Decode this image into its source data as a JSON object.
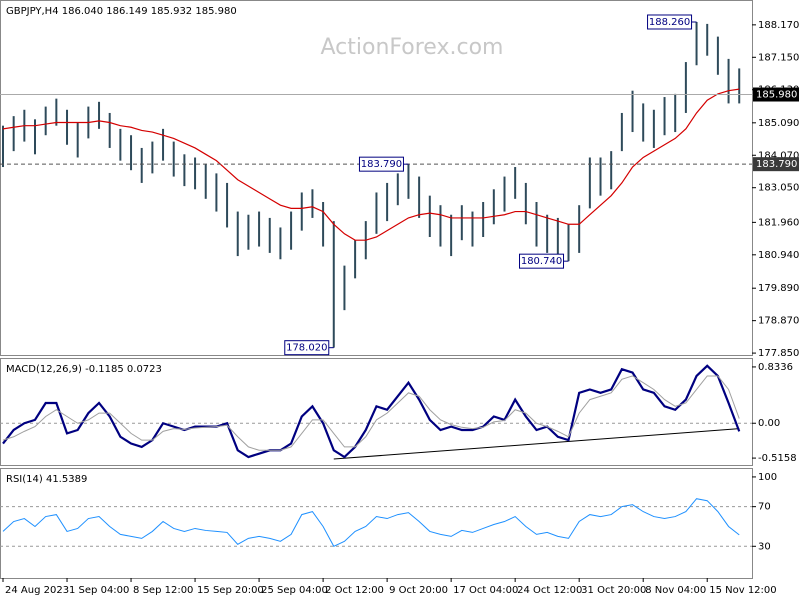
{
  "chart_data": [
    {
      "type": "ohlc",
      "title": "GBPJPY,H4  186.040 186.149 185.932 185.980",
      "watermark": "ActionForex.com",
      "color": "#2e4a5a",
      "categories": [
        "24 Aug 2023",
        null,
        null,
        null,
        null,
        null,
        "1 Sep 04:00",
        null,
        null,
        null,
        null,
        null,
        "8 Sep 12:00",
        null,
        null,
        null,
        null,
        null,
        "15 Sep 20:00",
        null,
        null,
        null,
        null,
        null,
        "25 Sep 04:00",
        null,
        null,
        null,
        null,
        null,
        "2 Oct 12:00",
        null,
        null,
        null,
        null,
        null,
        "9 Oct 20:00",
        null,
        null,
        null,
        null,
        null,
        "17 Oct 04:00",
        null,
        null,
        null,
        null,
        null,
        "24 Oct 12:00",
        null,
        null,
        null,
        null,
        null,
        "31 Oct 20:00",
        null,
        null,
        null,
        null,
        null,
        "8 Nov 04:00",
        null,
        null,
        null,
        null,
        null,
        "15 Nov 12:00",
        null,
        null,
        null
      ],
      "high": [
        185.0,
        185.3,
        185.5,
        185.2,
        185.6,
        185.85,
        185.5,
        185.1,
        185.6,
        185.75,
        185.4,
        184.9,
        184.7,
        184.3,
        184.5,
        184.9,
        184.5,
        184.1,
        184.0,
        183.8,
        183.5,
        183.2,
        182.3,
        182.2,
        182.3,
        182.1,
        181.8,
        182.3,
        182.9,
        183.0,
        182.6,
        182.0,
        180.6,
        181.4,
        182.0,
        182.9,
        183.2,
        183.5,
        183.79,
        183.4,
        182.8,
        182.5,
        182.2,
        182.5,
        182.3,
        182.6,
        183.0,
        183.4,
        183.7,
        183.2,
        182.6,
        182.2,
        182.1,
        181.9,
        182.5,
        184.0,
        184.0,
        184.2,
        185.4,
        186.1,
        185.7,
        185.5,
        185.9,
        186.0,
        187.0,
        188.26,
        188.2,
        187.8,
        187.1,
        186.8
      ],
      "low": [
        183.7,
        184.2,
        184.5,
        184.1,
        184.7,
        185.0,
        184.4,
        184.0,
        184.6,
        184.9,
        184.3,
        183.9,
        183.6,
        183.2,
        183.5,
        183.9,
        183.4,
        183.1,
        183.0,
        182.7,
        182.3,
        181.8,
        180.9,
        181.1,
        181.2,
        181.0,
        180.8,
        181.1,
        181.7,
        182.1,
        181.2,
        178.02,
        179.2,
        180.2,
        180.8,
        181.6,
        182.0,
        182.5,
        182.7,
        182.1,
        181.5,
        181.2,
        180.9,
        181.4,
        181.2,
        181.5,
        181.9,
        182.3,
        182.7,
        181.9,
        181.2,
        181.0,
        180.9,
        180.74,
        181.0,
        182.4,
        182.8,
        183.0,
        184.2,
        184.8,
        184.5,
        184.3,
        184.7,
        184.8,
        185.4,
        186.9,
        187.2,
        186.6,
        185.7,
        185.7
      ],
      "ma": {
        "color": "#d40000",
        "values": [
          184.9,
          184.95,
          185.0,
          185.0,
          185.05,
          185.1,
          185.1,
          185.1,
          185.1,
          185.15,
          185.1,
          185.0,
          184.95,
          184.85,
          184.8,
          184.7,
          184.6,
          184.45,
          184.3,
          184.1,
          183.9,
          183.6,
          183.3,
          183.1,
          182.9,
          182.7,
          182.5,
          182.4,
          182.4,
          182.45,
          182.3,
          181.9,
          181.6,
          181.4,
          181.4,
          181.5,
          181.7,
          181.9,
          182.1,
          182.2,
          182.25,
          182.2,
          182.1,
          182.1,
          182.1,
          182.1,
          182.15,
          182.2,
          182.3,
          182.3,
          182.2,
          182.1,
          182.0,
          181.9,
          181.9,
          182.2,
          182.5,
          182.8,
          183.2,
          183.7,
          184.0,
          184.2,
          184.4,
          184.6,
          184.9,
          185.4,
          185.8,
          186.0,
          186.1,
          186.15
        ]
      },
      "ylim": [
        177.79,
        188.92
      ],
      "yticks": [
        {
          "value": 177.85,
          "label": "177.850"
        },
        {
          "value": 178.87,
          "label": "178.870"
        },
        {
          "value": 179.89,
          "label": "179.890"
        },
        {
          "value": 180.94,
          "label": "180.940"
        },
        {
          "value": 181.96,
          "label": "181.960"
        },
        {
          "value": 183.05,
          "label": "183.050"
        },
        {
          "value": 184.07,
          "label": "184.070"
        },
        {
          "value": 185.09,
          "label": "185.090"
        },
        {
          "value": 186.13,
          "label": "186.130"
        },
        {
          "value": 187.15,
          "label": "187.150"
        },
        {
          "value": 188.17,
          "label": "188.170"
        }
      ],
      "hlines": [
        {
          "value": 183.79,
          "label": "183.790",
          "style": "dashed"
        },
        {
          "value": 185.98,
          "label": "185.980",
          "style": "solid"
        }
      ],
      "annotations": [
        {
          "index": 65,
          "value": 188.26,
          "label": "188.260"
        },
        {
          "index": 38,
          "value": 183.79,
          "label": "183.790"
        },
        {
          "index": 53,
          "value": 180.74,
          "label": "180.740"
        },
        {
          "index": 31,
          "value": 178.02,
          "label": "178.020"
        }
      ]
    },
    {
      "type": "line",
      "title": "MACD(12,26,9) -0.1185 0.0723",
      "ylim": [
        -0.618,
        0.951
      ],
      "yticks": [
        0.8336,
        {
          "value": 0,
          "label": "0.00"
        },
        -0.5158
      ],
      "levels": [
        0
      ],
      "series": [
        {
          "color": "#000080",
          "width": 2.2,
          "values": [
            -0.3,
            -0.1,
            0.0,
            0.05,
            0.3,
            0.3,
            -0.15,
            -0.1,
            0.15,
            0.3,
            0.1,
            -0.2,
            -0.3,
            -0.35,
            -0.25,
            0.0,
            -0.05,
            -0.1,
            -0.05,
            -0.05,
            -0.05,
            0.0,
            -0.4,
            -0.5,
            -0.45,
            -0.4,
            -0.4,
            -0.3,
            0.1,
            0.25,
            0.0,
            -0.4,
            -0.5,
            -0.35,
            -0.1,
            0.25,
            0.2,
            0.4,
            0.6,
            0.35,
            0.05,
            -0.1,
            -0.05,
            -0.1,
            -0.1,
            -0.05,
            0.1,
            0.05,
            0.35,
            0.1,
            -0.1,
            -0.05,
            -0.2,
            -0.25,
            0.45,
            0.5,
            0.45,
            0.5,
            0.8,
            0.75,
            0.5,
            0.45,
            0.25,
            0.2,
            0.35,
            0.7,
            0.85,
            0.7,
            0.3,
            -0.12
          ]
        },
        {
          "color": "#a0a0a0",
          "width": 1,
          "values": [
            -0.25,
            -0.2,
            -0.12,
            -0.05,
            0.1,
            0.2,
            0.1,
            0.0,
            0.05,
            0.15,
            0.15,
            0.0,
            -0.15,
            -0.25,
            -0.25,
            -0.12,
            -0.08,
            -0.09,
            -0.07,
            -0.06,
            -0.05,
            -0.03,
            -0.2,
            -0.35,
            -0.4,
            -0.4,
            -0.4,
            -0.35,
            -0.15,
            0.05,
            0.05,
            -0.15,
            -0.35,
            -0.35,
            -0.2,
            0.05,
            0.15,
            0.3,
            0.45,
            0.4,
            0.2,
            0.05,
            -0.02,
            -0.06,
            -0.08,
            -0.06,
            0.02,
            0.04,
            0.2,
            0.15,
            0.0,
            -0.05,
            -0.12,
            -0.2,
            0.15,
            0.35,
            0.4,
            0.45,
            0.65,
            0.7,
            0.6,
            0.5,
            0.35,
            0.25,
            0.3,
            0.5,
            0.7,
            0.7,
            0.5,
            0.07
          ]
        }
      ],
      "trendline": {
        "index": [
          31,
          69
        ],
        "values": [
          -0.53,
          -0.08
        ]
      }
    },
    {
      "type": "line",
      "title": "RSI(14) 41.5389",
      "ylim": [
        -2,
        108
      ],
      "yticks": [
        30,
        70,
        100
      ],
      "levels": [
        30,
        70
      ],
      "series": [
        {
          "color": "#1e90ff",
          "width": 1,
          "values": [
            45,
            55,
            58,
            50,
            60,
            62,
            45,
            48,
            58,
            60,
            50,
            42,
            40,
            38,
            45,
            55,
            48,
            45,
            48,
            46,
            45,
            44,
            32,
            38,
            40,
            38,
            35,
            42,
            62,
            65,
            50,
            30,
            35,
            45,
            50,
            60,
            58,
            62,
            64,
            55,
            45,
            42,
            40,
            46,
            44,
            48,
            52,
            55,
            60,
            50,
            42,
            44,
            40,
            38,
            55,
            62,
            60,
            62,
            70,
            72,
            65,
            60,
            58,
            60,
            65,
            78,
            76,
            65,
            50,
            41.5389
          ]
        }
      ]
    }
  ]
}
